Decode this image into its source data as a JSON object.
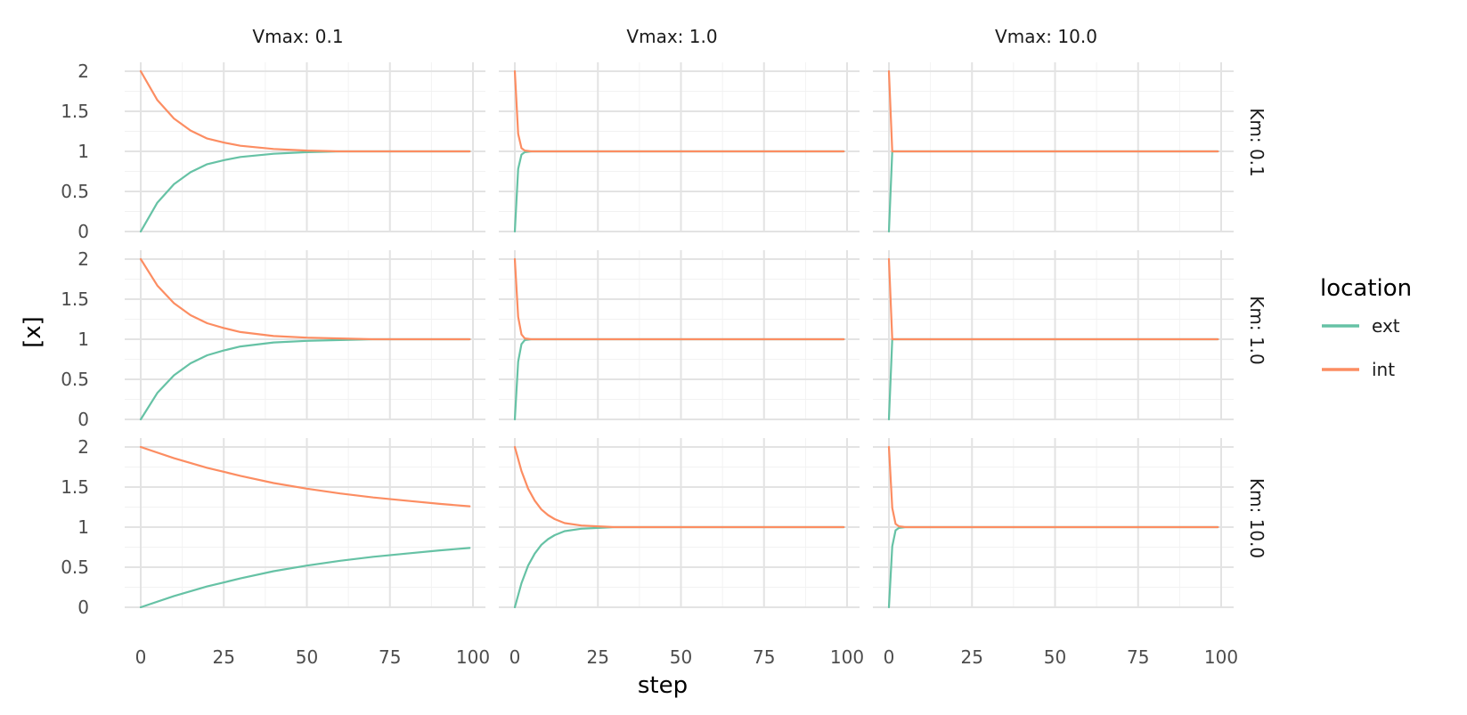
{
  "chart_data": {
    "type": "line",
    "facet_layout": "grid",
    "grid": true,
    "legend_position": "right",
    "xlabel": "step",
    "ylabel": "[x]",
    "xlim": [
      0,
      100
    ],
    "ylim": [
      0,
      2
    ],
    "x_ticks": [
      0,
      25,
      50,
      75,
      100
    ],
    "x_tick_labels": [
      "0",
      "25",
      "50",
      "75",
      "100"
    ],
    "y_ticks": [
      0,
      0.5,
      1,
      1.5,
      2
    ],
    "y_tick_labels": [
      "0",
      "0.5",
      "1",
      "1.5",
      "2"
    ],
    "col_labels": [
      "Vmax: 0.1",
      "Vmax: 1.0",
      "Vmax: 10.0"
    ],
    "row_labels": [
      "Km: 0.1",
      "Km: 1.0",
      "Km: 10.0"
    ],
    "legend": {
      "title": "location",
      "entries": [
        {
          "name": "ext",
          "color": "#66c2a5"
        },
        {
          "name": "int",
          "color": "#fc8d62"
        }
      ]
    },
    "panels": [
      {
        "row": 0,
        "col": 0,
        "series": [
          {
            "name": "ext",
            "points": [
              [
                0,
                0
              ],
              [
                5,
                0.36
              ],
              [
                10,
                0.59
              ],
              [
                15,
                0.74
              ],
              [
                20,
                0.84
              ],
              [
                25,
                0.89
              ],
              [
                30,
                0.93
              ],
              [
                40,
                0.97
              ],
              [
                50,
                0.99
              ],
              [
                60,
                1.0
              ],
              [
                99,
                1.0
              ]
            ]
          },
          {
            "name": "int",
            "points": [
              [
                0,
                2
              ],
              [
                5,
                1.64
              ],
              [
                10,
                1.41
              ],
              [
                15,
                1.26
              ],
              [
                20,
                1.16
              ],
              [
                25,
                1.11
              ],
              [
                30,
                1.07
              ],
              [
                40,
                1.03
              ],
              [
                50,
                1.01
              ],
              [
                60,
                1.0
              ],
              [
                99,
                1.0
              ]
            ]
          }
        ]
      },
      {
        "row": 0,
        "col": 1,
        "series": [
          {
            "name": "ext",
            "points": [
              [
                0,
                0
              ],
              [
                1,
                0.78
              ],
              [
                2,
                0.96
              ],
              [
                3,
                0.99
              ],
              [
                5,
                1.0
              ],
              [
                99,
                1.0
              ]
            ]
          },
          {
            "name": "int",
            "points": [
              [
                0,
                2
              ],
              [
                1,
                1.22
              ],
              [
                2,
                1.04
              ],
              [
                3,
                1.01
              ],
              [
                5,
                1.0
              ],
              [
                99,
                1.0
              ]
            ]
          }
        ]
      },
      {
        "row": 0,
        "col": 2,
        "series": [
          {
            "name": "ext",
            "points": [
              [
                0,
                0
              ],
              [
                1,
                1.0
              ],
              [
                99,
                1.0
              ]
            ]
          },
          {
            "name": "int",
            "points": [
              [
                0,
                2
              ],
              [
                1,
                1.0
              ],
              [
                99,
                1.0
              ]
            ]
          }
        ]
      },
      {
        "row": 1,
        "col": 0,
        "series": [
          {
            "name": "ext",
            "points": [
              [
                0,
                0
              ],
              [
                5,
                0.33
              ],
              [
                10,
                0.55
              ],
              [
                15,
                0.7
              ],
              [
                20,
                0.8
              ],
              [
                25,
                0.86
              ],
              [
                30,
                0.91
              ],
              [
                40,
                0.96
              ],
              [
                50,
                0.98
              ],
              [
                60,
                0.99
              ],
              [
                70,
                1.0
              ],
              [
                99,
                1.0
              ]
            ]
          },
          {
            "name": "int",
            "points": [
              [
                0,
                2
              ],
              [
                5,
                1.67
              ],
              [
                10,
                1.45
              ],
              [
                15,
                1.3
              ],
              [
                20,
                1.2
              ],
              [
                25,
                1.14
              ],
              [
                30,
                1.09
              ],
              [
                40,
                1.04
              ],
              [
                50,
                1.02
              ],
              [
                60,
                1.01
              ],
              [
                70,
                1.0
              ],
              [
                99,
                1.0
              ]
            ]
          }
        ]
      },
      {
        "row": 1,
        "col": 1,
        "series": [
          {
            "name": "ext",
            "points": [
              [
                0,
                0
              ],
              [
                1,
                0.72
              ],
              [
                2,
                0.94
              ],
              [
                3,
                0.99
              ],
              [
                5,
                1.0
              ],
              [
                99,
                1.0
              ]
            ]
          },
          {
            "name": "int",
            "points": [
              [
                0,
                2
              ],
              [
                1,
                1.28
              ],
              [
                2,
                1.06
              ],
              [
                3,
                1.01
              ],
              [
                5,
                1.0
              ],
              [
                99,
                1.0
              ]
            ]
          }
        ]
      },
      {
        "row": 1,
        "col": 2,
        "series": [
          {
            "name": "ext",
            "points": [
              [
                0,
                0
              ],
              [
                1,
                1.0
              ],
              [
                99,
                1.0
              ]
            ]
          },
          {
            "name": "int",
            "points": [
              [
                0,
                2
              ],
              [
                1,
                1.0
              ],
              [
                99,
                1.0
              ]
            ]
          }
        ]
      },
      {
        "row": 2,
        "col": 0,
        "series": [
          {
            "name": "ext",
            "points": [
              [
                0,
                0
              ],
              [
                10,
                0.14
              ],
              [
                20,
                0.26
              ],
              [
                30,
                0.36
              ],
              [
                40,
                0.45
              ],
              [
                50,
                0.52
              ],
              [
                60,
                0.58
              ],
              [
                70,
                0.63
              ],
              [
                80,
                0.67
              ],
              [
                90,
                0.71
              ],
              [
                99,
                0.74
              ]
            ]
          },
          {
            "name": "int",
            "points": [
              [
                0,
                2
              ],
              [
                10,
                1.86
              ],
              [
                20,
                1.74
              ],
              [
                30,
                1.64
              ],
              [
                40,
                1.55
              ],
              [
                50,
                1.48
              ],
              [
                60,
                1.42
              ],
              [
                70,
                1.37
              ],
              [
                80,
                1.33
              ],
              [
                90,
                1.29
              ],
              [
                99,
                1.26
              ]
            ]
          }
        ]
      },
      {
        "row": 2,
        "col": 1,
        "series": [
          {
            "name": "ext",
            "points": [
              [
                0,
                0
              ],
              [
                2,
                0.3
              ],
              [
                4,
                0.52
              ],
              [
                6,
                0.67
              ],
              [
                8,
                0.78
              ],
              [
                10,
                0.85
              ],
              [
                12,
                0.9
              ],
              [
                15,
                0.95
              ],
              [
                20,
                0.98
              ],
              [
                25,
                0.99
              ],
              [
                30,
                1.0
              ],
              [
                99,
                1.0
              ]
            ]
          },
          {
            "name": "int",
            "points": [
              [
                0,
                2
              ],
              [
                2,
                1.7
              ],
              [
                4,
                1.48
              ],
              [
                6,
                1.33
              ],
              [
                8,
                1.22
              ],
              [
                10,
                1.15
              ],
              [
                12,
                1.1
              ],
              [
                15,
                1.05
              ],
              [
                20,
                1.02
              ],
              [
                25,
                1.01
              ],
              [
                30,
                1.0
              ],
              [
                99,
                1.0
              ]
            ]
          }
        ]
      },
      {
        "row": 2,
        "col": 2,
        "series": [
          {
            "name": "ext",
            "points": [
              [
                0,
                0
              ],
              [
                1,
                0.76
              ],
              [
                2,
                0.96
              ],
              [
                3,
                0.99
              ],
              [
                5,
                1.0
              ],
              [
                99,
                1.0
              ]
            ]
          },
          {
            "name": "int",
            "points": [
              [
                0,
                2
              ],
              [
                1,
                1.24
              ],
              [
                2,
                1.04
              ],
              [
                3,
                1.01
              ],
              [
                5,
                1.0
              ],
              [
                99,
                1.0
              ]
            ]
          }
        ]
      }
    ]
  }
}
